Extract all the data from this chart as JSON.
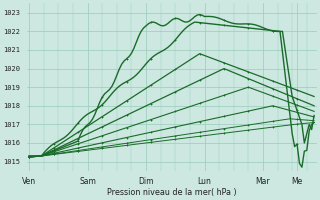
{
  "xlabel": "Pression niveau de la mer( hPa )",
  "ylim": [
    1014.5,
    1023.5
  ],
  "yticks": [
    1015,
    1016,
    1017,
    1018,
    1019,
    1020,
    1021,
    1022,
    1023
  ],
  "bg_color": "#cce8e0",
  "grid_color": "#99ccbb",
  "line_color": "#1a6b2a",
  "days": [
    "Ven",
    "Sam",
    "Dim",
    "Lun",
    "Mar",
    "Me"
  ],
  "day_positions": [
    0,
    24,
    48,
    72,
    96,
    110
  ],
  "n_points": 118
}
